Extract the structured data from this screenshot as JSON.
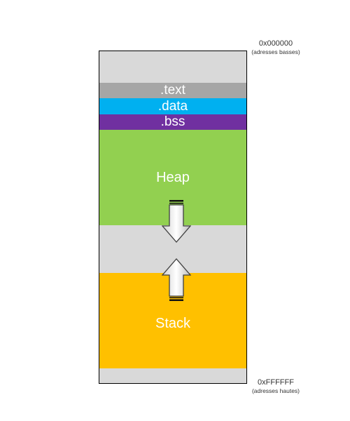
{
  "addresses": {
    "low": {
      "value": "0x000000",
      "note": "(adresses basses)"
    },
    "high": {
      "value": "0xFFFFFF",
      "note": "(adresses hautes)"
    }
  },
  "segments": {
    "text": {
      "label": ".text",
      "color": "#a6a6a6"
    },
    "data": {
      "label": ".data",
      "color": "#00b0f0"
    },
    "bss": {
      "label": ".bss",
      "color": "#7030a0"
    },
    "heap": {
      "label": "Heap",
      "color": "#92d050"
    },
    "stack": {
      "label": "Stack",
      "color": "#ffc000"
    },
    "free": {
      "color": "#d9d9d9"
    }
  },
  "arrows": {
    "heap_growth": "down-arrow-icon",
    "stack_growth": "up-arrow-icon"
  }
}
